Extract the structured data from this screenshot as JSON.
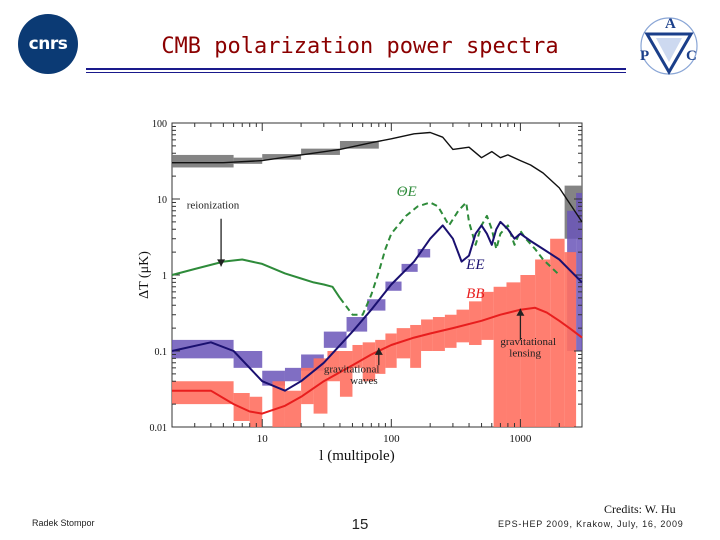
{
  "header": {
    "title": "CMB polarization power spectra",
    "logo_left_text": "cnrs",
    "logo_right_letters": [
      "A",
      "P",
      "C"
    ]
  },
  "footer": {
    "credits": "Credits: W. Hu",
    "author": "Radek Stompor",
    "page": "15",
    "event": "EPS-HEP 2009, Krakow, July, 16, 2009"
  },
  "colors": {
    "title": "#8b0000",
    "rule": "#1a1a8c",
    "tt": "#111111",
    "te": "#2e8b3a",
    "ee": "#1a1070",
    "bb": "#e81e1e",
    "ee_box": "#6a55b8",
    "bb_box": "#ff7060",
    "tt_box": "#777777"
  },
  "chart_data": {
    "type": "line",
    "xlabel": "l (multipole)",
    "ylabel": "ΔT (μK)",
    "xscale": "log",
    "yscale": "log",
    "xlim": [
      2,
      3000
    ],
    "ylim": [
      0.01,
      100
    ],
    "xticks": [
      10,
      100,
      1000
    ],
    "xtick_labels": [
      "10",
      "100",
      "1000"
    ],
    "yticks": [
      0.01,
      0.1,
      1,
      10,
      100
    ],
    "ytick_labels": [
      "0.01",
      "0.1",
      "1",
      "10",
      "100"
    ],
    "series": [
      {
        "name": "",
        "key": "tt",
        "style": "solid",
        "x": [
          2,
          5,
          10,
          20,
          40,
          70,
          100,
          150,
          200,
          250,
          300,
          400,
          500,
          600,
          700,
          800,
          1000,
          1200,
          1500,
          2000,
          3000
        ],
        "y": [
          30,
          30,
          32,
          38,
          45,
          55,
          62,
          72,
          75,
          65,
          45,
          48,
          35,
          42,
          35,
          38,
          32,
          28,
          22,
          14,
          5
        ]
      },
      {
        "name": "ΘE",
        "key": "te",
        "style": "dashed",
        "x": [
          40,
          50,
          60,
          70,
          80,
          90,
          100,
          130,
          160,
          200,
          230,
          280,
          330,
          380,
          400,
          450,
          500,
          550,
          600,
          650,
          700,
          800,
          900,
          1000,
          1100,
          1300,
          1500,
          2000
        ],
        "y": [
          0.5,
          0.3,
          0.3,
          0.55,
          1.1,
          2.2,
          3.5,
          6.0,
          8.0,
          9.0,
          8.0,
          4.5,
          7.0,
          9.0,
          5.0,
          2.5,
          4.5,
          6.0,
          4.0,
          2.2,
          3.5,
          4.5,
          2.5,
          3.8,
          3.0,
          2.2,
          1.6,
          1.0
        ]
      },
      {
        "name": "",
        "key": "te",
        "style": "solid",
        "x": [
          2,
          3,
          5,
          7,
          10,
          15,
          20,
          25,
          30,
          35,
          40
        ],
        "y": [
          1.0,
          1.2,
          1.5,
          1.6,
          1.4,
          1.05,
          0.9,
          0.8,
          0.75,
          0.7,
          0.5
        ]
      },
      {
        "name": "EE",
        "key": "ee",
        "style": "solid",
        "x": [
          2,
          4,
          6,
          10,
          15,
          20,
          30,
          50,
          70,
          100,
          150,
          200,
          250,
          300,
          350,
          400,
          450,
          500,
          550,
          600,
          650,
          700,
          800,
          900,
          1000,
          1200,
          1500,
          2000,
          3000
        ],
        "y": [
          0.1,
          0.13,
          0.1,
          0.04,
          0.03,
          0.04,
          0.07,
          0.18,
          0.35,
          0.75,
          1.5,
          3.0,
          4.5,
          3.0,
          1.5,
          1.8,
          3.5,
          4.5,
          3.5,
          2.5,
          4.0,
          5.0,
          4.0,
          3.0,
          3.5,
          2.8,
          2.2,
          1.6,
          0.8
        ]
      },
      {
        "name": "BB",
        "key": "bb",
        "style": "solid",
        "x": [
          2,
          4,
          6,
          8,
          10,
          15,
          20,
          30,
          50,
          70,
          100,
          150,
          200,
          300,
          500,
          700,
          1000,
          1300,
          1600,
          2000,
          2500,
          3000
        ],
        "y": [
          0.03,
          0.03,
          0.02,
          0.016,
          0.015,
          0.019,
          0.025,
          0.04,
          0.065,
          0.09,
          0.12,
          0.15,
          0.17,
          0.2,
          0.25,
          0.3,
          0.35,
          0.37,
          0.32,
          0.25,
          0.19,
          0.15
        ]
      }
    ],
    "error_boxes": [
      {
        "key": "tt_box",
        "x0": 2,
        "x1": 6,
        "y0": 26,
        "y1": 38
      },
      {
        "key": "tt_box",
        "x0": 6,
        "x1": 10,
        "y0": 29,
        "y1": 35
      },
      {
        "key": "tt_box",
        "x0": 10,
        "x1": 20,
        "y0": 33,
        "y1": 39
      },
      {
        "key": "tt_box",
        "x0": 20,
        "x1": 40,
        "y0": 38,
        "y1": 46
      },
      {
        "key": "tt_box",
        "x0": 40,
        "x1": 80,
        "y0": 46,
        "y1": 58
      },
      {
        "key": "tt_box",
        "x0": 2200,
        "x1": 3000,
        "y0": 3,
        "y1": 15
      },
      {
        "key": "ee_box",
        "x0": 2,
        "x1": 6,
        "y0": 0.08,
        "y1": 0.14
      },
      {
        "key": "ee_box",
        "x0": 6,
        "x1": 10,
        "y0": 0.06,
        "y1": 0.1
      },
      {
        "key": "ee_box",
        "x0": 10,
        "x1": 15,
        "y0": 0.035,
        "y1": 0.055
      },
      {
        "key": "ee_box",
        "x0": 15,
        "x1": 20,
        "y0": 0.04,
        "y1": 0.06
      },
      {
        "key": "ee_box",
        "x0": 20,
        "x1": 30,
        "y0": 0.055,
        "y1": 0.09
      },
      {
        "key": "ee_box",
        "x0": 30,
        "x1": 45,
        "y0": 0.11,
        "y1": 0.18
      },
      {
        "key": "ee_box",
        "x0": 45,
        "x1": 65,
        "y0": 0.18,
        "y1": 0.28
      },
      {
        "key": "ee_box",
        "x0": 65,
        "x1": 90,
        "y0": 0.34,
        "y1": 0.48
      },
      {
        "key": "ee_box",
        "x0": 90,
        "x1": 120,
        "y0": 0.62,
        "y1": 0.82
      },
      {
        "key": "ee_box",
        "x0": 120,
        "x1": 160,
        "y0": 1.1,
        "y1": 1.4
      },
      {
        "key": "ee_box",
        "x0": 160,
        "x1": 200,
        "y0": 1.7,
        "y1": 2.2
      },
      {
        "key": "ee_box",
        "x0": 2300,
        "x1": 2700,
        "y0": 0.1,
        "y1": 7
      },
      {
        "key": "ee_box",
        "x0": 2700,
        "x1": 3000,
        "y0": 0.1,
        "y1": 12
      },
      {
        "key": "bb_box",
        "x0": 2,
        "x1": 6,
        "y0": 0.02,
        "y1": 0.04
      },
      {
        "key": "bb_box",
        "x0": 6,
        "x1": 8,
        "y0": 0.012,
        "y1": 0.028
      },
      {
        "key": "bb_box",
        "x0": 8,
        "x1": 10,
        "y0": 0.01,
        "y1": 0.025
      },
      {
        "key": "bb_box",
        "x0": 12,
        "x1": 15,
        "y0": 0.01,
        "y1": 0.04
      },
      {
        "key": "bb_box",
        "x0": 15,
        "x1": 20,
        "y0": 0.01,
        "y1": 0.03
      },
      {
        "key": "bb_box",
        "x0": 20,
        "x1": 25,
        "y0": 0.02,
        "y1": 0.06
      },
      {
        "key": "bb_box",
        "x0": 25,
        "x1": 32,
        "y0": 0.015,
        "y1": 0.08
      },
      {
        "key": "bb_box",
        "x0": 32,
        "x1": 40,
        "y0": 0.04,
        "y1": 0.1
      },
      {
        "key": "bb_box",
        "x0": 40,
        "x1": 50,
        "y0": 0.025,
        "y1": 0.1
      },
      {
        "key": "bb_box",
        "x0": 50,
        "x1": 60,
        "y0": 0.06,
        "y1": 0.12
      },
      {
        "key": "bb_box",
        "x0": 60,
        "x1": 75,
        "y0": 0.04,
        "y1": 0.13
      },
      {
        "key": "bb_box",
        "x0": 75,
        "x1": 90,
        "y0": 0.05,
        "y1": 0.14
      },
      {
        "key": "bb_box",
        "x0": 90,
        "x1": 110,
        "y0": 0.06,
        "y1": 0.17
      },
      {
        "key": "bb_box",
        "x0": 110,
        "x1": 140,
        "y0": 0.08,
        "y1": 0.2
      },
      {
        "key": "bb_box",
        "x0": 140,
        "x1": 170,
        "y0": 0.06,
        "y1": 0.22
      },
      {
        "key": "bb_box",
        "x0": 170,
        "x1": 210,
        "y0": 0.1,
        "y1": 0.26
      },
      {
        "key": "bb_box",
        "x0": 210,
        "x1": 260,
        "y0": 0.1,
        "y1": 0.28
      },
      {
        "key": "bb_box",
        "x0": 260,
        "x1": 320,
        "y0": 0.11,
        "y1": 0.3
      },
      {
        "key": "bb_box",
        "x0": 320,
        "x1": 400,
        "y0": 0.13,
        "y1": 0.35
      },
      {
        "key": "bb_box",
        "x0": 400,
        "x1": 500,
        "y0": 0.12,
        "y1": 0.45
      },
      {
        "key": "bb_box",
        "x0": 500,
        "x1": 620,
        "y0": 0.14,
        "y1": 0.6
      },
      {
        "key": "bb_box",
        "x0": 620,
        "x1": 780,
        "y0": 0.01,
        "y1": 0.7
      },
      {
        "key": "bb_box",
        "x0": 780,
        "x1": 1000,
        "y0": 0.01,
        "y1": 0.8
      },
      {
        "key": "bb_box",
        "x0": 1000,
        "x1": 1300,
        "y0": 0.01,
        "y1": 1.0
      },
      {
        "key": "bb_box",
        "x0": 1300,
        "x1": 1700,
        "y0": 0.01,
        "y1": 1.6
      },
      {
        "key": "bb_box",
        "x0": 1700,
        "x1": 2200,
        "y0": 0.01,
        "y1": 3.0
      },
      {
        "key": "bb_box",
        "x0": 2200,
        "x1": 2700,
        "y0": 0.01,
        "y1": 2.0
      }
    ],
    "annotations": [
      {
        "text": "ΘE",
        "key": "te",
        "x": 110,
        "y": 11,
        "italic": true,
        "size": 15
      },
      {
        "text": "EE",
        "key": "ee",
        "x": 380,
        "y": 1.2,
        "italic": true,
        "size": 15
      },
      {
        "text": "BB",
        "key": "bb",
        "x": 380,
        "y": 0.5,
        "italic": true,
        "size": 15
      },
      {
        "text": "reionization",
        "key": "label",
        "x": 2.6,
        "y": 7.5,
        "italic": false,
        "size": 11
      },
      {
        "text": "gravitational",
        "key": "label",
        "x": 30,
        "y": 0.052,
        "italic": false,
        "size": 11
      },
      {
        "text": "waves",
        "key": "label",
        "x": 48,
        "y": 0.037,
        "italic": false,
        "size": 11
      },
      {
        "text": "gravitational",
        "key": "label",
        "x": 700,
        "y": 0.12,
        "italic": false,
        "size": 11
      },
      {
        "text": "lensing",
        "key": "label",
        "x": 820,
        "y": 0.085,
        "italic": false,
        "size": 11
      }
    ],
    "arrows": [
      {
        "from": [
          4.8,
          5.5
        ],
        "to": [
          4.8,
          1.3
        ]
      },
      {
        "from": [
          80,
          0.065
        ],
        "to": [
          80,
          0.11
        ]
      },
      {
        "from": [
          1000,
          0.14
        ],
        "to": [
          1000,
          0.36
        ]
      }
    ]
  }
}
